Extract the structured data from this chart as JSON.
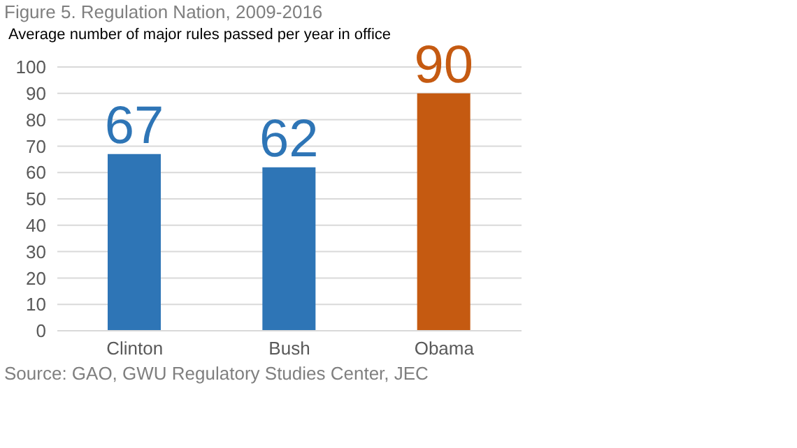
{
  "chart_data": {
    "type": "bar",
    "title": "Figure 5. Regulation Nation, 2009-2016",
    "subtitle": "Average number of major rules passed per year in office",
    "categories": [
      "Clinton",
      "Bush",
      "Obama"
    ],
    "values": [
      67,
      62,
      90
    ],
    "colors": [
      "#2e75b6",
      "#2e75b6",
      "#c55a11"
    ],
    "ylim": [
      0,
      100
    ],
    "yticks": [
      0,
      10,
      20,
      30,
      40,
      50,
      60,
      70,
      80,
      90,
      100
    ],
    "grid": "y",
    "data_labels": true,
    "annotations": [
      "Source: GAO, GWU Regulatory Studies Center, JEC"
    ]
  }
}
